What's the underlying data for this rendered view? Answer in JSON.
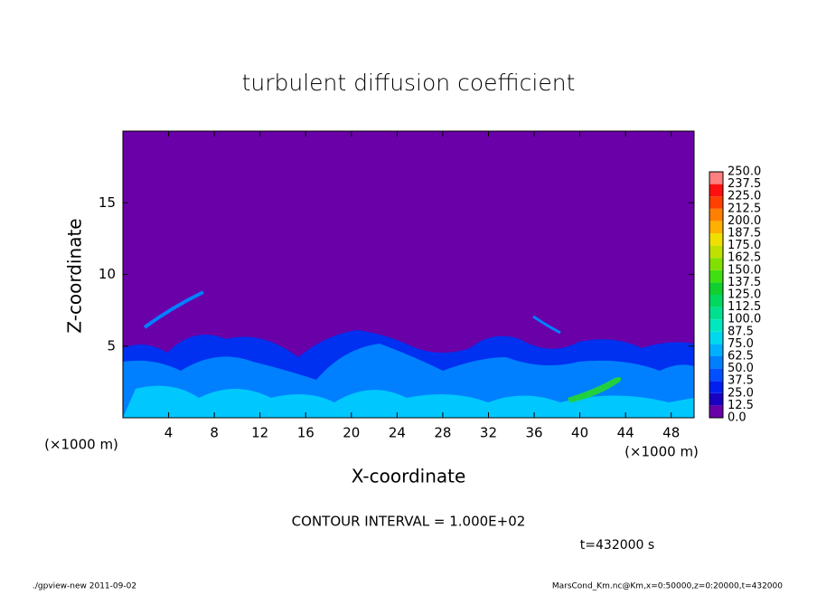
{
  "chart_data": {
    "type": "contour",
    "title": "turbulent diffusion coefficient",
    "xlabel": "X-coordinate",
    "ylabel": "Z-coordinate",
    "x_unit": "(×1000 m)",
    "y_unit": "(×1000 m)",
    "xlim": [
      0,
      50
    ],
    "xticks": [
      4,
      8,
      12,
      16,
      20,
      24,
      28,
      32,
      36,
      40,
      44,
      48
    ],
    "ylim": [
      0,
      20
    ],
    "yticks": [
      5,
      10,
      15
    ],
    "colorbar": {
      "levels": [
        {
          "value": 0,
          "label": "0.0"
        },
        12.5,
        {
          "value": 25,
          "label": "25.0"
        },
        37.5,
        {
          "value": 50,
          "label": "50.0"
        },
        62.5,
        {
          "value": 75,
          "label": "75.0"
        },
        87.5,
        {
          "value": 100,
          "label": "100.0"
        },
        112.5,
        {
          "value": 125,
          "label": "125.0"
        },
        137.5,
        {
          "value": 150,
          "label": "150.0"
        },
        162.5,
        {
          "value": 175,
          "label": "175.0"
        },
        187.5,
        {
          "value": 200,
          "label": "200.0"
        },
        212.5,
        {
          "value": 225,
          "label": "225.0"
        },
        237.5,
        {
          "value": 250,
          "label": "250.0"
        }
      ],
      "colors": [
        "#6a00a8",
        "#1a00c0",
        "#0020f0",
        "#0050ff",
        "#0080ff",
        "#00b0ff",
        "#00d8f0",
        "#00e8c0",
        "#00e090",
        "#00d860",
        "#10d030",
        "#40e010",
        "#80e000",
        "#c0e000",
        "#f0e000",
        "#ffb000",
        "#ff8000",
        "#ff4000",
        "#ff1010",
        "#ff8080"
      ]
    },
    "contour_interval": "CONTOUR INTERVAL = 1.000E+02",
    "time_label": "t=432000 s",
    "footer_left": "./gpview-new   2011-09-02",
    "footer_right": "MarsCond_Km.nc@Km,x=0:50000,z=0:20000,t=432000"
  }
}
